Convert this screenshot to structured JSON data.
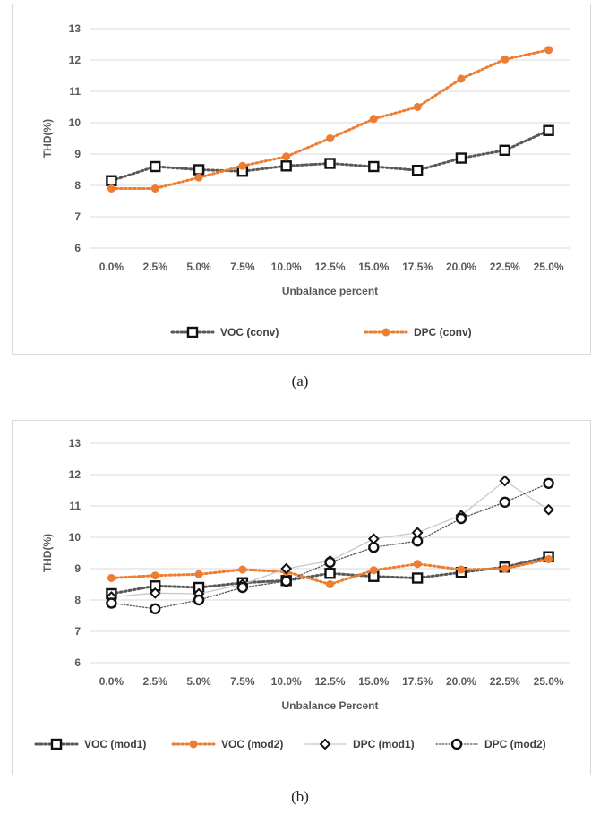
{
  "captions": {
    "a": "(a)",
    "b": "(b)"
  },
  "chart_data": [
    {
      "type": "line",
      "title": "",
      "xlabel": "Unbalance  percent",
      "ylabel": "THD(%)",
      "categories": [
        "0.0%",
        "2.5%",
        "5.0%",
        "7.5%",
        "10.0%",
        "12.5%",
        "15.0%",
        "17.5%",
        "20.0%",
        "22.5%",
        "25.0%"
      ],
      "ylim": [
        6,
        13
      ],
      "yticks": [
        6,
        7,
        8,
        9,
        10,
        11,
        12,
        13
      ],
      "grid": true,
      "legend_position": "bottom",
      "series": [
        {
          "name": "VOC (conv)",
          "color": "#595959",
          "line": "dotted",
          "marker": "square",
          "values": [
            8.15,
            8.6,
            8.5,
            8.45,
            8.62,
            8.7,
            8.6,
            8.48,
            8.87,
            9.12,
            9.75
          ]
        },
        {
          "name": "DPC (conv)",
          "color": "#ed7d31",
          "line": "dotted",
          "marker": "dot",
          "values": [
            7.9,
            7.9,
            8.25,
            8.62,
            8.92,
            9.5,
            10.12,
            10.5,
            11.4,
            12.02,
            12.32
          ]
        }
      ]
    },
    {
      "type": "line",
      "title": "",
      "xlabel": "Unbalance  Percent",
      "ylabel": "THD(%)",
      "categories": [
        "0.0%",
        "2.5%",
        "5.0%",
        "7.5%",
        "10.0%",
        "12.5%",
        "15.0%",
        "17.5%",
        "20.0%",
        "22.5%",
        "25.0%"
      ],
      "ylim": [
        6,
        13
      ],
      "yticks": [
        6,
        7,
        8,
        9,
        10,
        11,
        12,
        13
      ],
      "grid": true,
      "legend_position": "bottom",
      "series": [
        {
          "name": "VOC (mod1)",
          "color": "#595959",
          "line": "dotted",
          "marker": "square",
          "values": [
            8.2,
            8.45,
            8.4,
            8.55,
            8.62,
            8.85,
            8.75,
            8.7,
            8.88,
            9.05,
            9.38
          ]
        },
        {
          "name": "VOC (mod2)",
          "color": "#ed7d31",
          "line": "dotted",
          "marker": "dot",
          "values": [
            8.7,
            8.78,
            8.82,
            8.97,
            8.9,
            8.5,
            8.95,
            9.15,
            8.97,
            9.0,
            9.3
          ]
        },
        {
          "name": "DPC (mod1)",
          "color": "#c8c8c8",
          "line": "solid",
          "marker": "diamond",
          "values": [
            8.1,
            8.22,
            8.2,
            8.5,
            9.0,
            9.25,
            9.95,
            10.15,
            10.7,
            11.8,
            10.88
          ]
        },
        {
          "name": "DPC (mod2)",
          "color": "#595959",
          "line": "dotted-thin",
          "marker": "circle",
          "values": [
            7.9,
            7.72,
            8.0,
            8.4,
            8.6,
            9.2,
            9.68,
            9.88,
            10.6,
            11.12,
            11.72
          ]
        }
      ]
    }
  ]
}
